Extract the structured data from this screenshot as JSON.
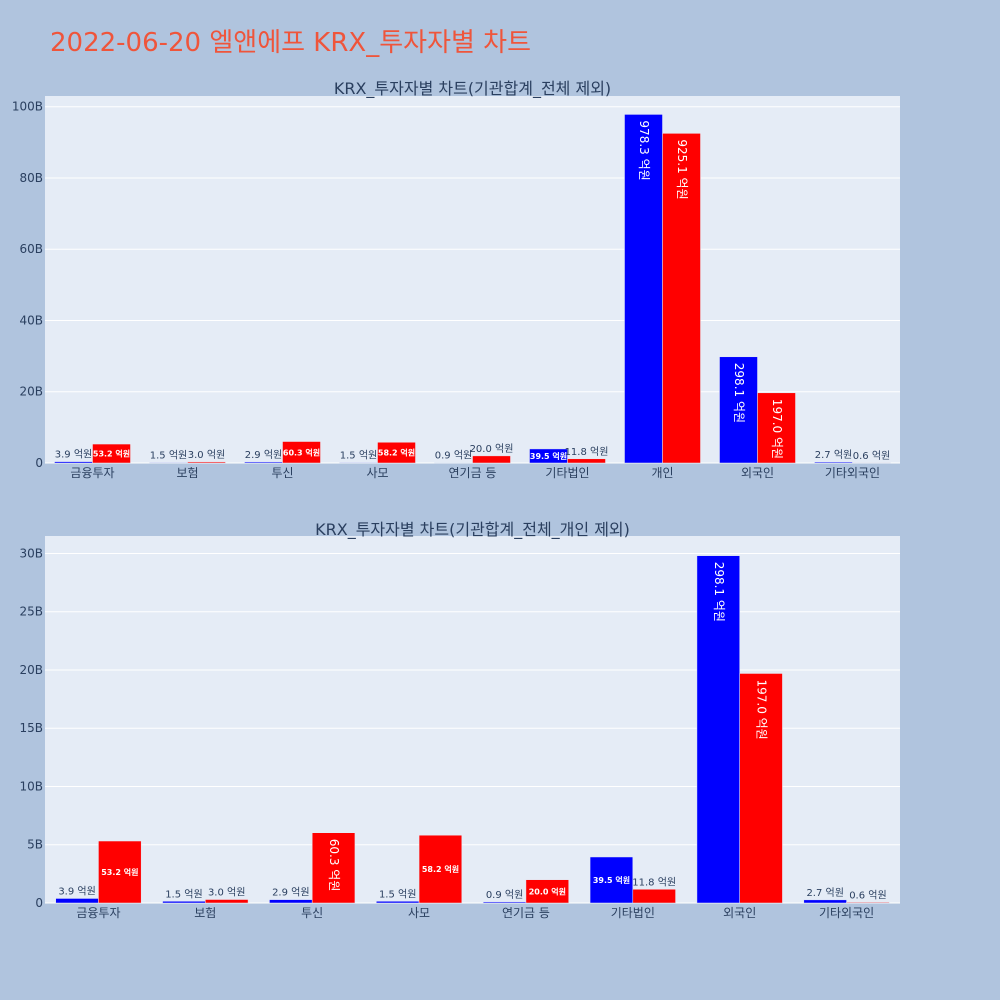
{
  "page": {
    "title": "2022-06-20 엘앤에프 KRX_투자자별 차트"
  },
  "chart_data": [
    {
      "type": "bar",
      "title": "KRX_투자자별 차트(기관합계_전체 제외)",
      "categories": [
        "금융투자",
        "보험",
        "투신",
        "사모",
        "연기금 등",
        "기타법인",
        "개인",
        "외국인",
        "기타외국인"
      ],
      "ylim": [
        0,
        103
      ],
      "yticks": [
        0,
        20,
        40,
        60,
        80,
        100
      ],
      "ytick_labels": [
        "0",
        "20B",
        "40B",
        "60B",
        "80B",
        "100B"
      ],
      "grid": true,
      "colors": [
        "#0000ff",
        "#ff0000"
      ],
      "series": [
        {
          "values": [
            0.39,
            0.15,
            0.29,
            0.15,
            0.09,
            3.95,
            97.83,
            29.81,
            0.27
          ],
          "labels": [
            "3.9 억원",
            "1.5 억원",
            "2.9 억원",
            "1.5 억원",
            "0.9 억원",
            "39.5 억원",
            "978.3 억원",
            "298.1 억원",
            "2.7 억원"
          ]
        },
        {
          "values": [
            5.32,
            0.3,
            6.03,
            5.82,
            2.0,
            1.18,
            92.51,
            19.7,
            0.06
          ],
          "labels": [
            "53.2 억원",
            "3.0 억원",
            "60.3 억원",
            "58.2 억원",
            "20.0 억원",
            "11.8 억원",
            "925.1 억원",
            "197.0 억원",
            "0.6 억원"
          ]
        }
      ]
    },
    {
      "type": "bar",
      "title": "KRX_투자자별 차트(기관합계_전체_개인 제외)",
      "categories": [
        "금융투자",
        "보험",
        "투신",
        "사모",
        "연기금 등",
        "기타법인",
        "외국인",
        "기타외국인"
      ],
      "ylim": [
        0,
        31.5
      ],
      "yticks": [
        0,
        5,
        10,
        15,
        20,
        25,
        30
      ],
      "ytick_labels": [
        "0",
        "5B",
        "10B",
        "15B",
        "20B",
        "25B",
        "30B"
      ],
      "grid": true,
      "colors": [
        "#0000ff",
        "#ff0000"
      ],
      "series": [
        {
          "values": [
            0.39,
            0.15,
            0.29,
            0.15,
            0.09,
            3.95,
            29.81,
            0.27
          ],
          "labels": [
            "3.9 억원",
            "1.5 억원",
            "2.9 억원",
            "1.5 억원",
            "0.9 억원",
            "39.5 억원",
            "298.1 억원",
            "2.7 억원"
          ]
        },
        {
          "values": [
            5.32,
            0.3,
            6.03,
            5.82,
            2.0,
            1.18,
            19.7,
            0.06
          ],
          "labels": [
            "53.2 억원",
            "3.0 억원",
            "60.3 억원",
            "58.2 억원",
            "20.0 억원",
            "11.8 억원",
            "197.0 억원",
            "0.6 억원"
          ]
        }
      ]
    }
  ]
}
